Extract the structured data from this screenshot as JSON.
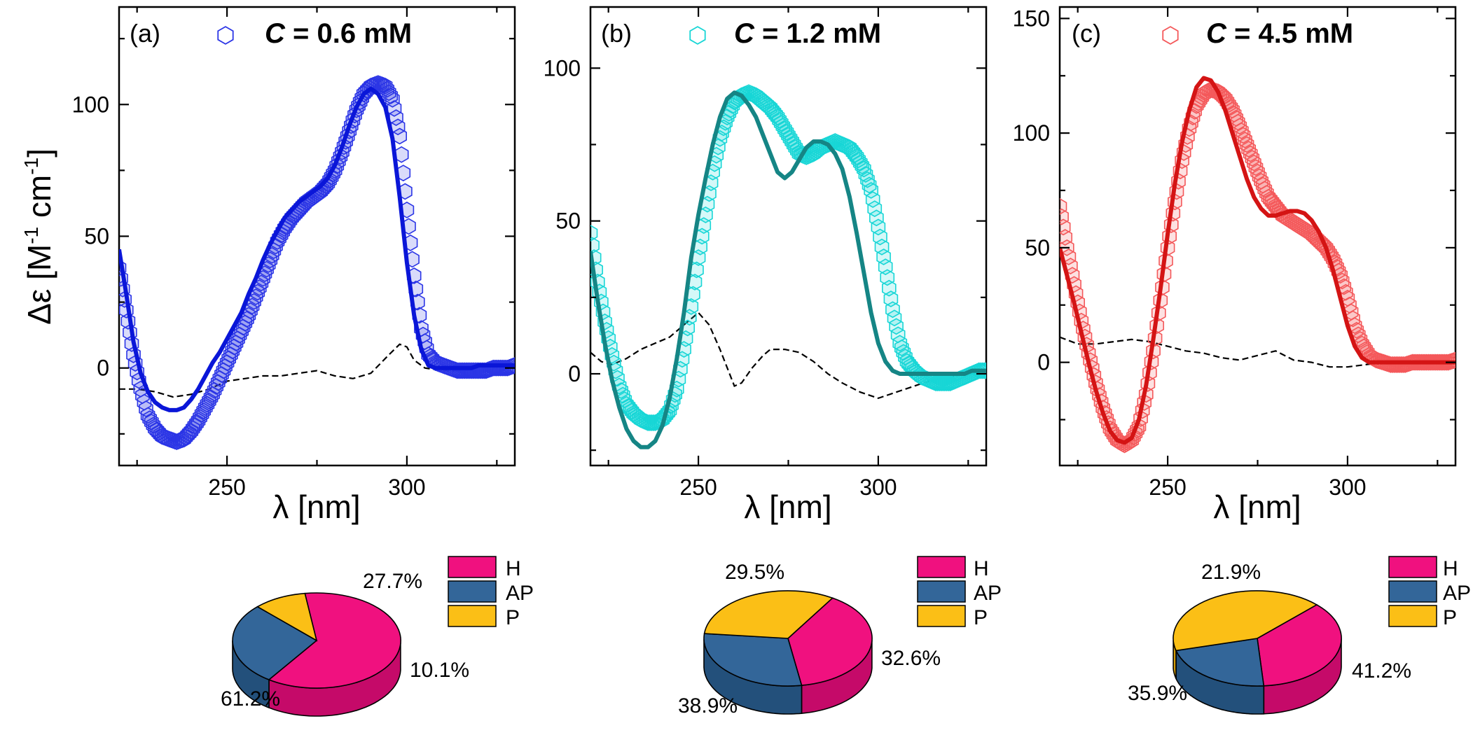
{
  "chart_data": [
    {
      "type": "line",
      "panel_label": "(a)",
      "legend_symbol": "⬡",
      "legend_prefix": "C",
      "legend_text": " = 0.6 mM",
      "xlabel": "λ [nm]",
      "ylabel": "Δε [M-1 cm-1]",
      "ylabel_parts": {
        "main": "Δε [M",
        "sup1": "-1",
        "mid": " cm",
        "sup2": "-1",
        "end": "]"
      },
      "xlim": [
        220,
        330
      ],
      "ylim": [
        -37,
        137
      ],
      "xticks": [
        250,
        300
      ],
      "yticks": [
        0,
        50,
        100
      ],
      "colors": {
        "marker": "#2b35e6",
        "fit": "#0a16d8"
      },
      "series": [
        {
          "name": "experimental",
          "style": "hexagon-markers",
          "x": [
            220,
            222,
            224,
            226,
            228,
            230,
            232,
            234,
            236,
            238,
            240,
            242,
            244,
            246,
            248,
            250,
            252,
            254,
            256,
            258,
            260,
            262,
            264,
            266,
            268,
            270,
            272,
            274,
            276,
            278,
            280,
            282,
            284,
            286,
            288,
            290,
            292,
            294,
            296,
            298,
            300,
            302,
            304,
            306,
            308,
            310,
            312,
            314,
            316,
            318,
            320,
            322,
            324,
            326,
            328,
            330
          ],
          "y": [
            38,
            22,
            5,
            -8,
            -18,
            -23,
            -26,
            -27,
            -28,
            -27,
            -24,
            -20,
            -15,
            -10,
            -4,
            2,
            8,
            14,
            20,
            27,
            34,
            41,
            48,
            53,
            57,
            60,
            63,
            65,
            67,
            70,
            75,
            82,
            90,
            98,
            104,
            107,
            108,
            107,
            102,
            88,
            60,
            35,
            15,
            5,
            2,
            1,
            0,
            -1,
            -1,
            -1,
            -1,
            -1,
            0,
            0,
            0,
            1
          ]
        },
        {
          "name": "fit",
          "style": "solid",
          "x": [
            220,
            222,
            224,
            226,
            228,
            230,
            232,
            234,
            236,
            238,
            240,
            242,
            244,
            246,
            248,
            250,
            252,
            254,
            256,
            258,
            260,
            262,
            264,
            266,
            268,
            270,
            272,
            274,
            276,
            278,
            280,
            282,
            284,
            286,
            288,
            290,
            292,
            294,
            296,
            298,
            300,
            302,
            304,
            306,
            308,
            310,
            312,
            314,
            316,
            318,
            320,
            322,
            324,
            326,
            328,
            330
          ],
          "y": [
            45,
            28,
            10,
            -2,
            -9,
            -13,
            -15,
            -16,
            -16,
            -15,
            -12,
            -8,
            -3,
            2,
            6,
            11,
            16,
            21,
            28,
            34,
            41,
            47,
            52,
            57,
            60,
            63,
            65,
            67,
            69,
            72,
            77,
            84,
            92,
            99,
            104,
            106,
            104,
            99,
            87,
            65,
            40,
            20,
            7,
            1,
            0,
            0,
            0,
            0,
            0,
            0,
            1,
            1,
            1,
            1,
            1,
            1
          ]
        },
        {
          "name": "difference",
          "style": "dashed",
          "x": [
            220,
            225,
            230,
            235,
            240,
            245,
            250,
            255,
            260,
            265,
            270,
            275,
            280,
            285,
            290,
            295,
            298,
            300,
            302,
            305,
            310,
            315,
            320,
            325,
            330
          ],
          "y": [
            -8,
            -8,
            -9,
            -11,
            -10,
            -8,
            -5,
            -4,
            -3,
            -3,
            -2,
            -1,
            -3,
            -4,
            -2,
            5,
            9,
            8,
            3,
            0,
            -1,
            -1,
            0,
            0,
            0
          ]
        }
      ],
      "pie": {
        "slices": [
          {
            "label": "H",
            "value": 61.2,
            "text": "61.2%",
            "color": "#f0117f",
            "side": "#c50a69"
          },
          {
            "label": "AP",
            "value": 27.7,
            "text": "27.7%",
            "color": "#336699",
            "side": "#23507b"
          },
          {
            "label": "P",
            "value": 10.1,
            "text": "10.1%",
            "color": "#fbbf16",
            "side": "#d59f0a"
          }
        ],
        "start_angle_deg": -98
      }
    },
    {
      "type": "line",
      "panel_label": "(b)",
      "legend_symbol": "⬡",
      "legend_prefix": "C",
      "legend_text": " = 1.2 mM",
      "xlabel": "λ [nm]",
      "xlim": [
        220,
        330
      ],
      "ylim": [
        -30,
        120
      ],
      "xticks": [
        250,
        300
      ],
      "yticks": [
        0,
        50,
        100
      ],
      "colors": {
        "marker": "#18d6d6",
        "fit": "#158585"
      },
      "series": [
        {
          "name": "experimental",
          "style": "hexagon-markers",
          "x": [
            220,
            222,
            224,
            226,
            228,
            230,
            232,
            234,
            236,
            238,
            240,
            242,
            244,
            246,
            248,
            250,
            252,
            254,
            256,
            258,
            260,
            262,
            264,
            266,
            268,
            270,
            272,
            274,
            276,
            278,
            280,
            282,
            284,
            286,
            288,
            290,
            292,
            294,
            296,
            298,
            300,
            302,
            304,
            306,
            308,
            310,
            312,
            314,
            316,
            318,
            320,
            322,
            324,
            326,
            328,
            330
          ],
          "y": [
            46,
            30,
            17,
            6,
            -4,
            -10,
            -13,
            -15,
            -16,
            -16,
            -15,
            -12,
            -5,
            8,
            22,
            38,
            52,
            66,
            77,
            84,
            89,
            91,
            92,
            91,
            89,
            87,
            84,
            80,
            76,
            72,
            71,
            72,
            74,
            75,
            76,
            75,
            74,
            71,
            67,
            60,
            48,
            35,
            21,
            10,
            4,
            1,
            -1,
            -2,
            -3,
            -3,
            -3,
            -2,
            -1,
            0,
            1,
            1
          ]
        },
        {
          "name": "fit",
          "style": "solid",
          "x": [
            220,
            222,
            224,
            226,
            228,
            230,
            232,
            234,
            236,
            238,
            240,
            242,
            244,
            246,
            248,
            250,
            252,
            254,
            256,
            258,
            260,
            262,
            264,
            266,
            268,
            270,
            272,
            274,
            276,
            278,
            280,
            282,
            284,
            286,
            288,
            290,
            292,
            294,
            296,
            298,
            300,
            302,
            304,
            306,
            308,
            310,
            312,
            314,
            316,
            318,
            320,
            322,
            324,
            326,
            328,
            330
          ],
          "y": [
            40,
            24,
            10,
            -2,
            -11,
            -18,
            -22,
            -24,
            -24,
            -22,
            -17,
            -8,
            5,
            20,
            38,
            52,
            64,
            75,
            84,
            90,
            92,
            91,
            88,
            84,
            78,
            72,
            66,
            64,
            66,
            70,
            74,
            76,
            76,
            75,
            72,
            67,
            58,
            46,
            33,
            20,
            10,
            4,
            1,
            0,
            0,
            0,
            0,
            0,
            0,
            0,
            0,
            0,
            0,
            1,
            1,
            1
          ]
        },
        {
          "name": "difference",
          "style": "dashed",
          "x": [
            220,
            223,
            226,
            230,
            234,
            238,
            242,
            246,
            248,
            250,
            253,
            256,
            258,
            260,
            262,
            265,
            268,
            270,
            274,
            278,
            282,
            286,
            290,
            295,
            300,
            305,
            310,
            315,
            320,
            325,
            330
          ],
          "y": [
            7,
            4,
            3,
            5,
            8,
            10,
            12,
            16,
            18,
            20,
            16,
            8,
            2,
            -4,
            -3,
            2,
            6,
            8,
            8,
            7,
            4,
            0,
            -3,
            -6,
            -8,
            -6,
            -4,
            -2,
            -1,
            0,
            0
          ]
        }
      ],
      "pie": {
        "slices": [
          {
            "label": "H",
            "value": 38.9,
            "text": "38.9%",
            "color": "#f0117f",
            "side": "#c50a69"
          },
          {
            "label": "AP",
            "value": 29.5,
            "text": "29.5%",
            "color": "#336699",
            "side": "#23507b"
          },
          {
            "label": "P",
            "value": 32.6,
            "text": "32.6%",
            "color": "#fbbf16",
            "side": "#d59f0a"
          }
        ],
        "start_angle_deg": -58
      }
    },
    {
      "type": "line",
      "panel_label": "(c)",
      "legend_symbol": "⬡",
      "legend_prefix": "C",
      "legend_text": " = 4.5 mM",
      "xlabel": "λ [nm]",
      "xlim": [
        220,
        330
      ],
      "ylim": [
        -45,
        155
      ],
      "xticks": [
        250,
        300
      ],
      "yticks": [
        0,
        50,
        100,
        150
      ],
      "colors": {
        "marker": "#f4585a",
        "fit": "#d41414"
      },
      "series": [
        {
          "name": "experimental",
          "style": "hexagon-markers",
          "x": [
            220,
            222,
            224,
            226,
            228,
            230,
            232,
            234,
            236,
            238,
            240,
            242,
            244,
            246,
            248,
            250,
            252,
            254,
            256,
            258,
            260,
            262,
            264,
            266,
            268,
            270,
            272,
            274,
            276,
            278,
            280,
            282,
            284,
            286,
            288,
            290,
            292,
            294,
            296,
            298,
            300,
            302,
            304,
            306,
            308,
            310,
            312,
            314,
            316,
            318,
            320,
            322,
            324,
            326,
            328,
            330
          ],
          "y": [
            68,
            50,
            34,
            18,
            4,
            -9,
            -20,
            -29,
            -34,
            -36,
            -34,
            -28,
            -14,
            5,
            27,
            50,
            70,
            88,
            102,
            112,
            117,
            119,
            118,
            115,
            110,
            103,
            95,
            87,
            79,
            72,
            68,
            64,
            62,
            60,
            58,
            56,
            53,
            50,
            45,
            38,
            28,
            16,
            8,
            3,
            1,
            0,
            -1,
            -1,
            -1,
            0,
            0,
            0,
            0,
            0,
            0,
            1
          ]
        },
        {
          "name": "fit",
          "style": "solid",
          "x": [
            220,
            222,
            224,
            226,
            228,
            230,
            232,
            234,
            236,
            238,
            240,
            242,
            244,
            246,
            248,
            250,
            252,
            254,
            256,
            258,
            260,
            262,
            264,
            266,
            268,
            270,
            272,
            274,
            276,
            278,
            280,
            282,
            284,
            286,
            288,
            290,
            292,
            294,
            296,
            298,
            300,
            302,
            304,
            306,
            308,
            310,
            312,
            314,
            316,
            318,
            320,
            322,
            324,
            326,
            328,
            330
          ],
          "y": [
            50,
            38,
            26,
            13,
            0,
            -12,
            -22,
            -30,
            -34,
            -35,
            -33,
            -25,
            -10,
            10,
            32,
            56,
            78,
            96,
            110,
            120,
            124,
            123,
            118,
            110,
            100,
            90,
            80,
            72,
            67,
            64,
            64,
            65,
            66,
            66,
            65,
            62,
            57,
            50,
            40,
            28,
            16,
            7,
            2,
            0,
            0,
            0,
            0,
            0,
            0,
            0,
            0,
            0,
            0,
            0,
            0,
            0
          ]
        },
        {
          "name": "difference",
          "style": "dashed",
          "x": [
            220,
            225,
            230,
            235,
            240,
            245,
            250,
            255,
            260,
            265,
            270,
            275,
            280,
            285,
            290,
            295,
            300,
            305,
            310,
            315,
            320,
            325,
            330
          ],
          "y": [
            11,
            8,
            8,
            9,
            10,
            9,
            7,
            5,
            4,
            2,
            1,
            3,
            5,
            1,
            0,
            -2,
            -2,
            -1,
            0,
            1,
            1,
            2,
            2
          ]
        }
      ],
      "pie": {
        "slices": [
          {
            "label": "H",
            "value": 35.9,
            "text": "35.9%",
            "color": "#f0117f",
            "side": "#c50a69"
          },
          {
            "label": "AP",
            "value": 21.9,
            "text": "21.9%",
            "color": "#336699",
            "side": "#23507b"
          },
          {
            "label": "P",
            "value": 41.2,
            "text": "41.2%",
            "color": "#fbbf16",
            "side": "#d59f0a"
          }
        ],
        "start_angle_deg": -45
      }
    }
  ]
}
